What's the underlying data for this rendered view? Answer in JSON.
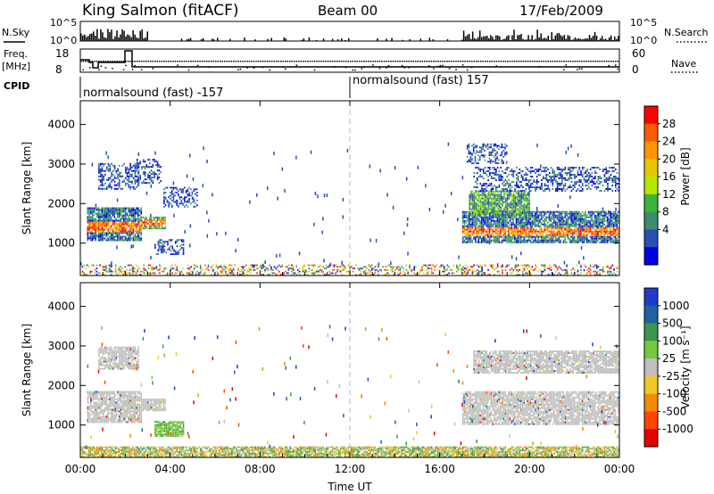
{
  "header": {
    "title": "King Salmon (fitACF)",
    "beam": "Beam 00",
    "date": "17/Feb/2009"
  },
  "top_panels": {
    "nsky_label": "N.Sky",
    "nsearch_label": "N.Search",
    "nsky_ticks": [
      "10^5",
      "10^0"
    ],
    "nsearch_ticks": [
      "10^5",
      "10^0"
    ],
    "freq_label": "Freq.",
    "freq_unit": "[MHz]",
    "freq_ticks": [
      "18",
      "8"
    ],
    "nave_label": "Nave",
    "nave_ticks": [
      "60",
      "0"
    ],
    "cpid_label": "CPID",
    "cpid_left": "normalsound (fast) -157",
    "cpid_right": "normalsound (fast) 157"
  },
  "power_panel": {
    "ylabel": "Slant Range [km]",
    "colorbar_label": "Power [dB]",
    "colorbar_ticks": [
      "28",
      "24",
      "20",
      "16",
      "12",
      "8",
      "4"
    ],
    "colors": [
      "#ff0000",
      "#ff5a00",
      "#ff9600",
      "#e6c800",
      "#b4e600",
      "#3cb43c",
      "#3c8c6e",
      "#2850b4",
      "#0000e6"
    ]
  },
  "velocity_panel": {
    "ylabel": "Slant Range [km]",
    "colorbar_label": "Velocity [m s⁻¹]",
    "colorbar_ticks": [
      "1000",
      "500",
      "100",
      "25",
      "-25",
      "-100",
      "-500",
      "-1000"
    ],
    "colors": [
      "#1e3cc8",
      "#1e64a0",
      "#3c9650",
      "#78c83c",
      "#c0c0c0",
      "#f0c828",
      "#f08c00",
      "#ff4600",
      "#e60000"
    ],
    "ground_scatter_color": "#c0c0c0"
  },
  "x_axis": {
    "label": "Time UT",
    "ticks": [
      "00:00",
      "04:00",
      "08:00",
      "12:00",
      "16:00",
      "20:00",
      "00:00"
    ]
  },
  "chart_data": {
    "type": "heatmap",
    "title": "King Salmon (fitACF)",
    "xlabel": "Time UT",
    "ylabel": "Slant Range [km]",
    "xlim": [
      0,
      24
    ],
    "ylim": [
      180,
      4600
    ],
    "yticks": [
      1000,
      2000,
      3000,
      4000
    ],
    "panels": [
      {
        "name": "Power",
        "unit": "dB",
        "scale": [
          0,
          30
        ],
        "regions": [
          {
            "t": [
              0.3,
              2.7
            ],
            "r": [
              1050,
              1900
            ],
            "core": [
              1250,
              1500
            ],
            "level": "high"
          },
          {
            "t": [
              2.7,
              3.8
            ],
            "r": [
              1350,
              1650
            ],
            "core": [
              1400,
              1550
            ],
            "level": "medium"
          },
          {
            "t": [
              0.8,
              2.6
            ],
            "r": [
              2350,
              3000
            ],
            "level": "low"
          },
          {
            "t": [
              2.5,
              3.6
            ],
            "r": [
              2500,
              3100
            ],
            "level": "low"
          },
          {
            "t": [
              3.7,
              5.2
            ],
            "r": [
              1900,
              2400
            ],
            "level": "low"
          },
          {
            "t": [
              3.3,
              4.6
            ],
            "r": [
              700,
              1100
            ],
            "level": "low"
          },
          {
            "t": [
              17.0,
              24.0
            ],
            "r": [
              1000,
              1800
            ],
            "core": [
              1150,
              1400
            ],
            "level": "high"
          },
          {
            "t": [
              17.3,
              20.0
            ],
            "r": [
              1700,
              2300
            ],
            "level": "medium"
          },
          {
            "t": [
              17.5,
              24.0
            ],
            "r": [
              2300,
              2900
            ],
            "level": "low"
          },
          {
            "t": [
              17.2,
              19.0
            ],
            "r": [
              3000,
              3500
            ],
            "level": "low"
          },
          {
            "t": [
              0.0,
              24.0
            ],
            "r": [
              180,
              450
            ],
            "level": "mixed"
          }
        ]
      },
      {
        "name": "Velocity",
        "unit": "m s-1",
        "scale": [
          -1000,
          1000
        ],
        "regions": [
          {
            "t": [
              0.3,
              2.7
            ],
            "r": [
              1050,
              1850
            ],
            "type": "ground_scatter"
          },
          {
            "t": [
              2.7,
              3.8
            ],
            "r": [
              1350,
              1650
            ],
            "type": "ground_scatter"
          },
          {
            "t": [
              17.0,
              24.0
            ],
            "r": [
              1000,
              1850
            ],
            "type": "ground_scatter"
          },
          {
            "t": [
              17.5,
              24.0
            ],
            "r": [
              2300,
              2850
            ],
            "type": "ground_scatter"
          },
          {
            "t": [
              0.8,
              2.6
            ],
            "r": [
              2400,
              2950
            ],
            "type": "ground_scatter"
          },
          {
            "t": [
              3.3,
              4.6
            ],
            "r": [
              700,
              1100
            ],
            "velocity": 100
          },
          {
            "t": [
              0.0,
              24.0
            ],
            "r": [
              180,
              450
            ],
            "velocity": 25
          }
        ]
      }
    ],
    "cpid_change_time": 12.0
  }
}
